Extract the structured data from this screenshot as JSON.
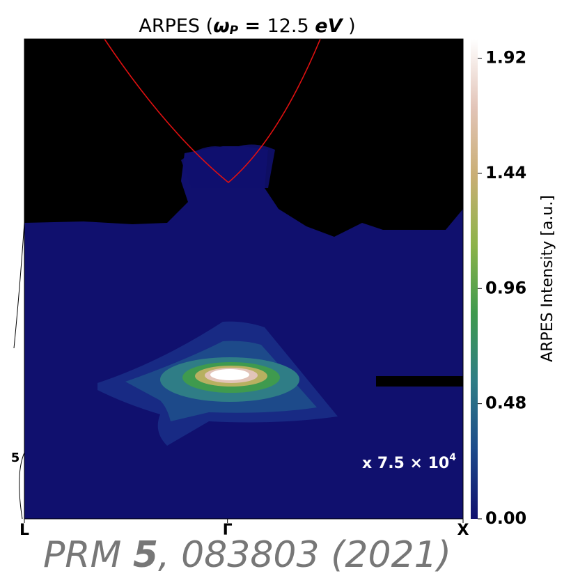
{
  "chart_data": {
    "type": "heatmap",
    "title": {
      "prefix": "ARPES (",
      "symbol": "ω",
      "subscript": "P",
      "equals": " = ",
      "number": "12.5",
      "unit": "eV",
      "suffix": " )"
    },
    "x_labels": [
      "L",
      "Γ",
      "X"
    ],
    "left_label": "5",
    "colorbar": {
      "label": "ARPES Intensity [a.u.]",
      "lim": [
        0,
        2.0
      ],
      "ticks": [
        {
          "value": 0,
          "label": "0.00"
        },
        0.48,
        0.96,
        1.44,
        1.92
      ],
      "colors": [
        "#10106e",
        "#1d4a8a",
        "#2f7d86",
        "#3f9a4e",
        "#8db34a",
        "#c9ae74",
        "#e2c4b8",
        "#ffffff"
      ]
    },
    "annotation": {
      "text": "x 7.5 × 10",
      "exponent": "4"
    },
    "footer": {
      "journal": "PRM ",
      "volume": "5",
      "rest": ", 083803 (2021)"
    }
  }
}
